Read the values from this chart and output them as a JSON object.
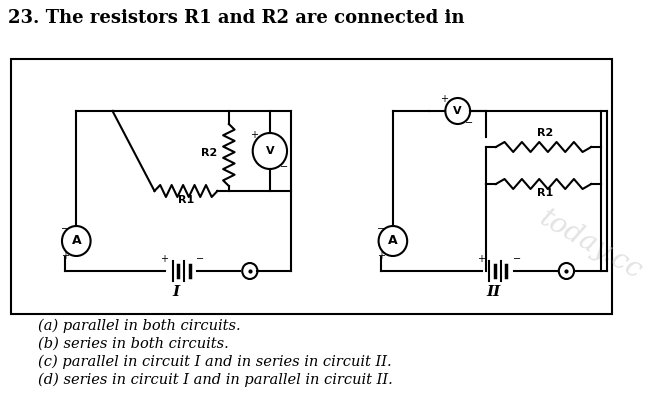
{
  "title": "23. The resistors R1 and R2 are connected in",
  "title_fontsize": 13,
  "options": [
    "(a) parallel in both circuits.",
    "(b) series in both circuits.",
    "(c) parallel in circuit I and in series in circuit II.",
    "(d) series in circuit I and in parallel in circuit II."
  ],
  "bg_color": "#ffffff"
}
